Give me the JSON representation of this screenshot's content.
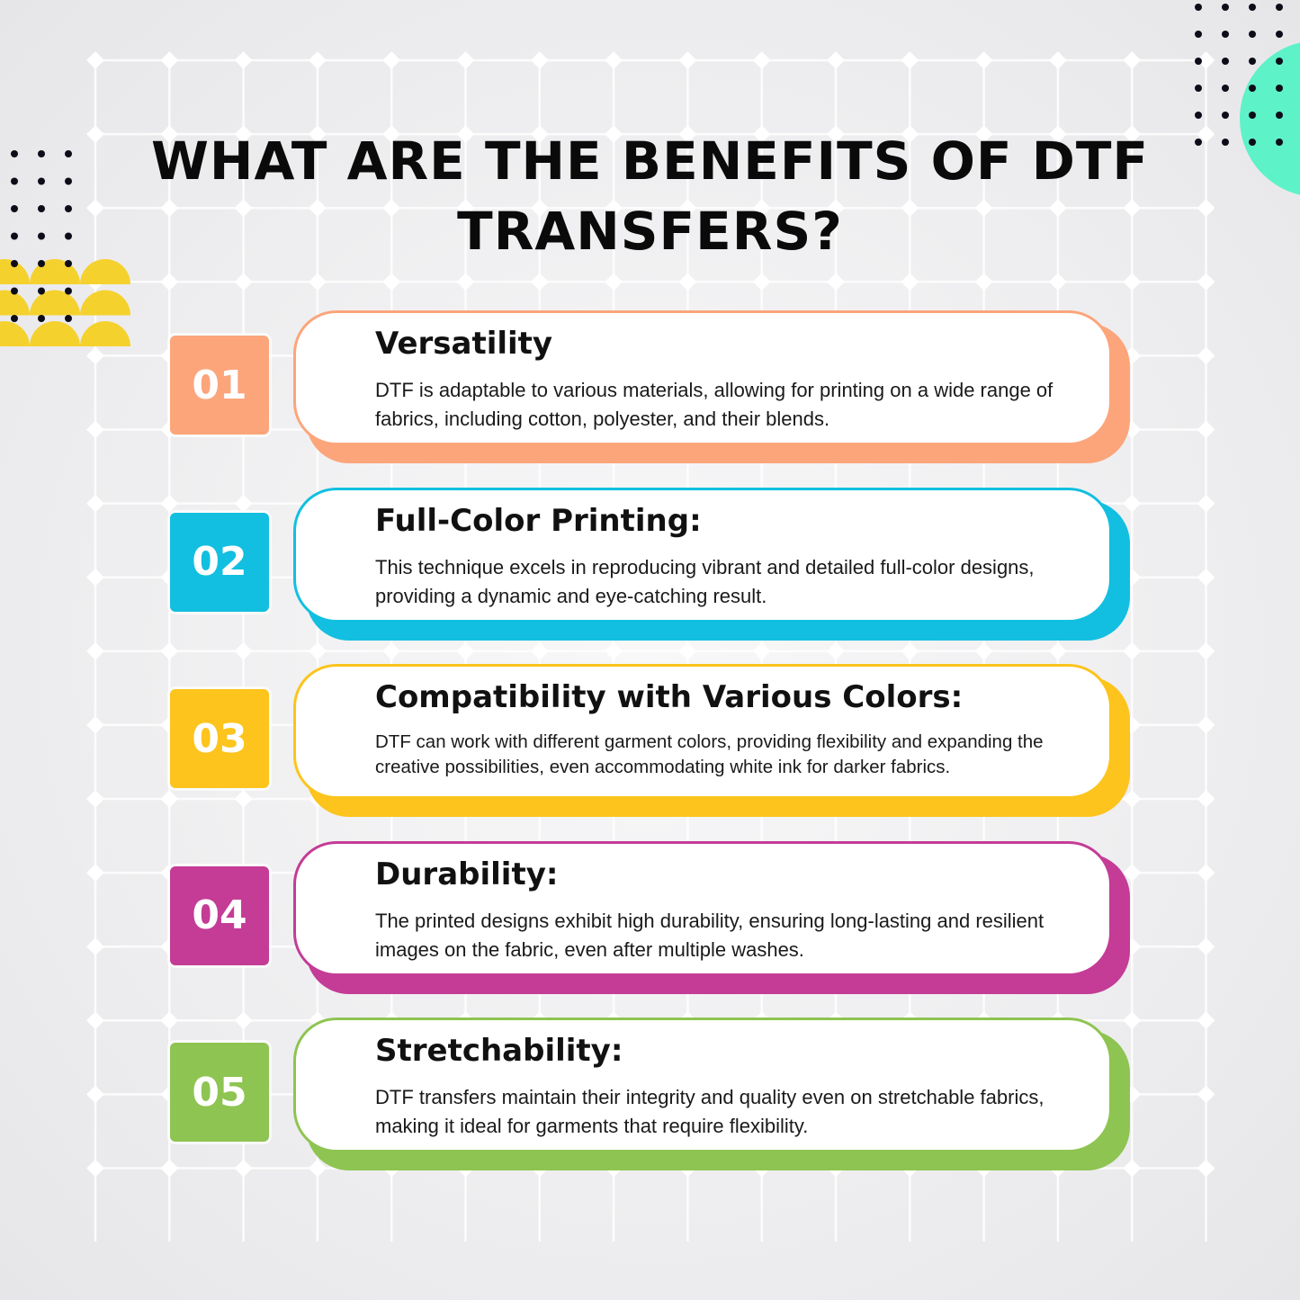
{
  "title": {
    "line1": "WHAT ARE THE BENEFITS OF DTF",
    "line2": "TRANSFERS?"
  },
  "colors": {
    "teal_circle": "#5ef2c8",
    "yellow_semicircles": "#f5d12e",
    "dots": "#0d0d1a"
  },
  "benefits": [
    {
      "number": "01",
      "title": "Versatility",
      "body": "DTF is adaptable to various materials, allowing for printing on a wide range of fabrics, including cotton, polyester, and their blends.",
      "color": "#fca57b"
    },
    {
      "number": "02",
      "title": "Full-Color Printing:",
      "body": "This technique excels in reproducing vibrant and detailed full-color designs, providing a dynamic and eye-catching result.",
      "color": "#12bfe0"
    },
    {
      "number": "03",
      "title": "Compatibility with Various Colors:",
      "body": "DTF can work with different garment colors, providing flexibility and expanding the creative possibilities, even accommodating white ink for darker fabrics.",
      "color": "#fcc41c"
    },
    {
      "number": "04",
      "title": "Durability:",
      "body": "The printed designs exhibit high durability, ensuring long-lasting and resilient images on the fabric, even after multiple washes.",
      "color": "#c43c96"
    },
    {
      "number": "05",
      "title": "Stretchability:",
      "body": "DTF transfers maintain their integrity and quality even on stretchable fabrics, making it ideal for garments that require flexibility.",
      "color": "#8ec451"
    }
  ]
}
